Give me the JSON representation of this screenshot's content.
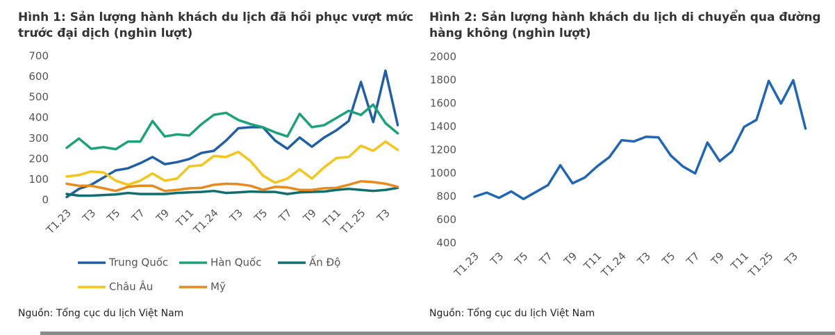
{
  "chart_data": [
    {
      "type": "line",
      "title": "Hình 1: Sản lượng hành khách du lịch đã hồi phục vượt mức trước đại dịch (nghìn lượt)",
      "source": "Nguồn: Tổng cục du lịch Việt Nam",
      "categories": [
        "T1.23",
        null,
        "T3",
        null,
        "T5",
        null,
        "T7",
        null,
        "T9",
        null,
        "T11",
        null,
        "T1.24",
        null,
        "T3",
        null,
        "T5",
        null,
        "T7",
        null,
        "T9",
        null,
        "T11",
        null,
        "T1.25",
        null,
        "T3",
        null
      ],
      "ylim": [
        0,
        700
      ],
      "yticks": [
        0,
        100,
        200,
        300,
        400,
        500,
        600,
        700
      ],
      "legend": "bottom",
      "series": [
        {
          "name": "Trung Quốc",
          "color": "#1f5fa8",
          "values": [
            15,
            55,
            75,
            110,
            145,
            155,
            180,
            210,
            175,
            185,
            200,
            230,
            240,
            290,
            350,
            355,
            355,
            290,
            250,
            305,
            260,
            305,
            340,
            385,
            575,
            380,
            630,
            365
          ]
        },
        {
          "name": "Hàn Quốc",
          "color": "#1aa37a",
          "values": [
            255,
            300,
            250,
            258,
            248,
            285,
            285,
            385,
            310,
            320,
            315,
            370,
            415,
            425,
            390,
            370,
            355,
            330,
            310,
            420,
            355,
            365,
            400,
            435,
            415,
            465,
            375,
            325
          ]
        },
        {
          "name": "Ấn Độ",
          "color": "#0f6e6e",
          "values": [
            30,
            22,
            22,
            25,
            28,
            35,
            30,
            30,
            30,
            35,
            38,
            40,
            45,
            35,
            38,
            42,
            40,
            40,
            30,
            38,
            40,
            42,
            50,
            55,
            50,
            45,
            50,
            60
          ]
        },
        {
          "name": "Châu Âu",
          "color": "#f5c518",
          "values": [
            115,
            122,
            140,
            135,
            95,
            75,
            95,
            130,
            95,
            105,
            165,
            170,
            215,
            210,
            235,
            190,
            120,
            85,
            105,
            150,
            105,
            160,
            205,
            210,
            265,
            240,
            285,
            245
          ]
        },
        {
          "name": "Mỹ",
          "color": "#e8891c",
          "values": [
            80,
            70,
            70,
            58,
            45,
            65,
            70,
            70,
            45,
            50,
            58,
            60,
            75,
            80,
            78,
            70,
            50,
            65,
            62,
            50,
            50,
            58,
            60,
            75,
            92,
            88,
            80,
            65
          ]
        }
      ]
    },
    {
      "type": "line",
      "title": "Hình 2: Sản lượng hành khách du lịch di chuyển qua đường hàng không (nghìn lượt)",
      "source": "Nguồn: Tổng cục du lịch Việt Nam",
      "categories": [
        "T1.23",
        null,
        "T3",
        null,
        "T5",
        null,
        "T7",
        null,
        "T9",
        null,
        "T11",
        null,
        "T1.24",
        null,
        "T3",
        null,
        "T5",
        null,
        "T7",
        null,
        "T9",
        null,
        "T11",
        null,
        "T1.25",
        null,
        "T3",
        null
      ],
      "ylim": [
        400,
        2000
      ],
      "yticks": [
        400,
        600,
        800,
        1000,
        1200,
        1400,
        1600,
        1800,
        2000
      ],
      "color": "#1f66b8",
      "values": [
        800,
        835,
        790,
        845,
        780,
        840,
        900,
        1070,
        915,
        965,
        1060,
        1140,
        1285,
        1275,
        1315,
        1310,
        1155,
        1060,
        1000,
        1265,
        1105,
        1190,
        1400,
        1460,
        1795,
        1600,
        1800,
        1385
      ]
    }
  ]
}
